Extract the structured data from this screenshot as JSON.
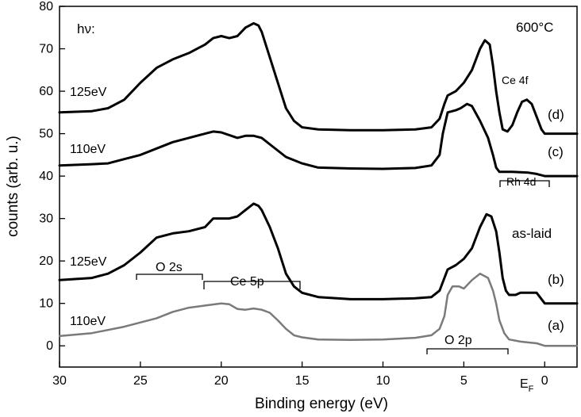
{
  "chart_data": {
    "type": "line",
    "xlabel": "Binding energy (eV)",
    "ylabel": "counts (arb. u.)",
    "xlim": [
      30,
      -2
    ],
    "ylim": [
      -5,
      80
    ],
    "x_ticks": [
      30,
      25,
      20,
      15,
      10,
      5,
      0
    ],
    "y_ticks": [
      0,
      10,
      20,
      30,
      40,
      50,
      60,
      70,
      80
    ],
    "fermi_label": "E",
    "fermi_sub": "F",
    "corner_left": "hν:",
    "corner_right": "600°C",
    "series": [
      {
        "name": "(a)",
        "energy": "110eV",
        "color": "#7a7a7a",
        "points": [
          [
            30,
            2.3
          ],
          [
            28,
            3
          ],
          [
            26,
            4.5
          ],
          [
            24,
            6.5
          ],
          [
            23,
            8
          ],
          [
            22,
            9
          ],
          [
            21,
            9.5
          ],
          [
            20,
            10
          ],
          [
            19.5,
            9.8
          ],
          [
            19,
            8.7
          ],
          [
            18.5,
            8.5
          ],
          [
            18,
            8.8
          ],
          [
            17.5,
            8.5
          ],
          [
            17,
            7.8
          ],
          [
            16.5,
            6
          ],
          [
            16,
            4
          ],
          [
            15.5,
            2.5
          ],
          [
            15,
            2
          ],
          [
            14,
            1.5
          ],
          [
            12,
            1.4
          ],
          [
            10,
            1.5
          ],
          [
            8,
            1.9
          ],
          [
            7,
            2.5
          ],
          [
            6.5,
            4
          ],
          [
            6.2,
            7
          ],
          [
            6,
            12
          ],
          [
            5.7,
            14
          ],
          [
            5.3,
            14
          ],
          [
            5,
            13.5
          ],
          [
            4.5,
            15.5
          ],
          [
            4,
            17
          ],
          [
            3.5,
            16
          ],
          [
            3.2,
            13
          ],
          [
            3,
            10
          ],
          [
            2.8,
            6
          ],
          [
            2.5,
            3
          ],
          [
            2.2,
            1.5
          ],
          [
            1.5,
            1
          ],
          [
            1,
            0.8
          ],
          [
            0.5,
            0.6
          ],
          [
            0,
            0
          ],
          [
            -2,
            0
          ]
        ]
      },
      {
        "name": "(b)",
        "energy": "125eV",
        "color": "#000000",
        "points": [
          [
            30,
            15.5
          ],
          [
            28,
            16
          ],
          [
            27,
            17
          ],
          [
            26,
            19
          ],
          [
            25,
            22
          ],
          [
            24,
            25.5
          ],
          [
            23,
            26.5
          ],
          [
            22,
            27
          ],
          [
            21,
            28
          ],
          [
            20.5,
            30
          ],
          [
            19.5,
            30
          ],
          [
            19,
            30.5
          ],
          [
            18.5,
            32
          ],
          [
            18,
            33.5
          ],
          [
            17.7,
            33
          ],
          [
            17.5,
            32
          ],
          [
            17,
            28
          ],
          [
            16.5,
            23
          ],
          [
            16,
            17
          ],
          [
            15.5,
            14
          ],
          [
            15,
            12.5
          ],
          [
            14,
            11.5
          ],
          [
            12,
            11
          ],
          [
            10,
            11
          ],
          [
            8,
            11.2
          ],
          [
            7,
            11.5
          ],
          [
            6.5,
            13
          ],
          [
            6.2,
            16
          ],
          [
            6,
            18
          ],
          [
            5.5,
            19
          ],
          [
            5,
            20.5
          ],
          [
            4.5,
            23
          ],
          [
            4,
            28
          ],
          [
            3.6,
            31
          ],
          [
            3.3,
            30.5
          ],
          [
            3,
            27
          ],
          [
            2.8,
            22
          ],
          [
            2.6,
            16
          ],
          [
            2.4,
            13
          ],
          [
            2.2,
            12
          ],
          [
            1.8,
            12
          ],
          [
            1.5,
            12.5
          ],
          [
            1,
            12.5
          ],
          [
            0.5,
            12.5
          ],
          [
            0,
            10
          ],
          [
            -2,
            10
          ]
        ]
      },
      {
        "name": "(c)",
        "energy": "110eV",
        "color": "#000000",
        "points": [
          [
            30,
            42.5
          ],
          [
            28,
            42.8
          ],
          [
            27,
            43
          ],
          [
            26,
            44
          ],
          [
            25,
            45
          ],
          [
            24,
            46.5
          ],
          [
            23,
            48
          ],
          [
            22,
            49
          ],
          [
            21,
            50
          ],
          [
            20.5,
            50.5
          ],
          [
            20,
            50.3
          ],
          [
            19,
            49
          ],
          [
            18.5,
            49.5
          ],
          [
            18,
            49.5
          ],
          [
            17.5,
            49
          ],
          [
            17,
            47.5
          ],
          [
            16.5,
            46
          ],
          [
            16,
            44.5
          ],
          [
            15,
            43
          ],
          [
            14,
            42
          ],
          [
            12,
            41.8
          ],
          [
            10,
            41.7
          ],
          [
            8,
            41.9
          ],
          [
            7,
            42.5
          ],
          [
            6.5,
            45
          ],
          [
            6.3,
            50
          ],
          [
            6,
            55
          ],
          [
            5.5,
            55.5
          ],
          [
            5.2,
            56
          ],
          [
            4.8,
            57
          ],
          [
            4.5,
            56.5
          ],
          [
            4,
            53
          ],
          [
            3.5,
            49
          ],
          [
            3.2,
            45
          ],
          [
            3,
            42
          ],
          [
            2.8,
            41
          ],
          [
            2.5,
            41
          ],
          [
            2,
            41
          ],
          [
            1,
            40.8
          ],
          [
            0.5,
            40.5
          ],
          [
            0,
            40
          ],
          [
            -2,
            40
          ]
        ]
      },
      {
        "name": "(d)",
        "energy": "125eV",
        "color": "#000000",
        "points": [
          [
            30,
            55
          ],
          [
            28,
            55.3
          ],
          [
            27,
            56
          ],
          [
            26,
            58
          ],
          [
            25,
            62
          ],
          [
            24,
            65.5
          ],
          [
            23,
            67.5
          ],
          [
            22,
            69
          ],
          [
            21,
            71
          ],
          [
            20.5,
            72.5
          ],
          [
            20,
            73
          ],
          [
            19.5,
            72.5
          ],
          [
            19,
            73
          ],
          [
            18.5,
            75
          ],
          [
            18,
            76
          ],
          [
            17.7,
            75.5
          ],
          [
            17.5,
            74
          ],
          [
            17,
            68
          ],
          [
            16.5,
            62
          ],
          [
            16,
            56
          ],
          [
            15.5,
            53
          ],
          [
            15,
            51.5
          ],
          [
            14,
            51
          ],
          [
            12,
            50.8
          ],
          [
            10,
            50.8
          ],
          [
            8,
            51
          ],
          [
            7,
            51.5
          ],
          [
            6.5,
            53.5
          ],
          [
            6.2,
            57
          ],
          [
            6,
            59
          ],
          [
            5.5,
            60
          ],
          [
            5,
            62
          ],
          [
            4.5,
            65
          ],
          [
            4,
            70
          ],
          [
            3.7,
            72
          ],
          [
            3.4,
            71
          ],
          [
            3.2,
            66
          ],
          [
            3,
            60
          ],
          [
            2.8,
            55
          ],
          [
            2.6,
            51
          ],
          [
            2.3,
            50.5
          ],
          [
            2,
            52
          ],
          [
            1.7,
            55
          ],
          [
            1.4,
            57.5
          ],
          [
            1.1,
            58
          ],
          [
            0.8,
            57
          ],
          [
            0.5,
            54
          ],
          [
            0.2,
            51
          ],
          [
            0,
            50
          ],
          [
            -2,
            50
          ]
        ]
      }
    ],
    "annotations": {
      "label_d": "(d)",
      "label_c": "(c)",
      "label_b": "(b)",
      "label_a": "(a)",
      "energy_d": "125eV",
      "energy_c": "110eV",
      "energy_b": "125eV",
      "energy_a": "110eV",
      "as_laid": "as-laid",
      "ce4f": "Ce 4f",
      "rh4d": "Rh 4d",
      "o2s": "O 2s",
      "ce5p": "Ce 5p",
      "o2p": "O 2p"
    }
  }
}
